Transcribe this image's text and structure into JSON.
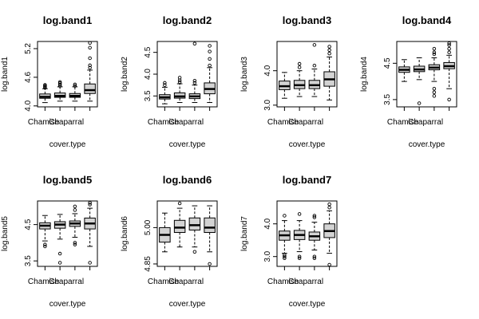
{
  "colors": {
    "box_fill": "#d3d3d3",
    "stroke": "#000000",
    "background": "#ffffff"
  },
  "chart_data": [
    {
      "type": "boxplot",
      "title": "log.band1",
      "xlabel": "cover.type",
      "ylabel": "log.band1",
      "categories": [
        "Chamise",
        "Chaparral",
        "",
        ""
      ],
      "ylim": [
        3.98,
        5.35
      ],
      "yticks": [
        4.0,
        4.6,
        5.2
      ],
      "tick_labels": [
        "4.0",
        "4.6",
        "5.2"
      ],
      "boxes": [
        {
          "min": 4.07,
          "q1": 4.16,
          "median": 4.19,
          "q3": 4.25,
          "max": 4.36,
          "outliers": [
            4.38,
            4.4,
            4.42,
            4.44
          ]
        },
        {
          "min": 4.1,
          "q1": 4.18,
          "median": 4.21,
          "q3": 4.27,
          "max": 4.4,
          "outliers": [
            4.42,
            4.45,
            4.48,
            4.5
          ]
        },
        {
          "min": 4.1,
          "q1": 4.18,
          "median": 4.21,
          "q3": 4.26,
          "max": 4.4,
          "outliers": [
            4.42,
            4.45
          ]
        },
        {
          "min": 4.1,
          "q1": 4.26,
          "median": 4.33,
          "q3": 4.46,
          "max": 4.75,
          "outliers": [
            4.8,
            4.85,
            5.0,
            5.22,
            5.32
          ]
        }
      ]
    },
    {
      "type": "boxplot",
      "title": "log.band2",
      "xlabel": "cover.type",
      "ylabel": "log.band2",
      "categories": [
        "Chamise",
        "Chaparral",
        "",
        ""
      ],
      "ylim": [
        3.25,
        4.75
      ],
      "yticks": [
        3.5,
        4.0,
        4.5
      ],
      "tick_labels": [
        "3.5",
        "4.0",
        "4.5"
      ],
      "boxes": [
        {
          "min": 3.32,
          "q1": 3.43,
          "median": 3.47,
          "q3": 3.53,
          "max": 3.7,
          "outliers": [
            3.75,
            3.8
          ]
        },
        {
          "min": 3.35,
          "q1": 3.45,
          "median": 3.49,
          "q3": 3.57,
          "max": 3.78,
          "outliers": [
            3.82,
            3.86,
            3.92
          ]
        },
        {
          "min": 3.35,
          "q1": 3.44,
          "median": 3.49,
          "q3": 3.55,
          "max": 3.75,
          "outliers": [
            3.8,
            3.85,
            4.7
          ]
        },
        {
          "min": 3.35,
          "q1": 3.55,
          "median": 3.66,
          "q3": 3.8,
          "max": 4.15,
          "outliers": [
            4.2,
            4.35,
            4.52,
            4.65
          ]
        }
      ]
    },
    {
      "type": "boxplot",
      "title": "log.band3",
      "xlabel": "cover.type",
      "ylabel": "log.band3",
      "categories": [
        "Chamise",
        "Chaparral",
        "",
        ""
      ],
      "ylim": [
        2.95,
        4.85
      ],
      "yticks": [
        3.0,
        4.0
      ],
      "tick_labels": [
        "3.0",
        "4.0"
      ],
      "boxes": [
        {
          "min": 3.2,
          "q1": 3.45,
          "median": 3.55,
          "q3": 3.7,
          "max": 3.95,
          "outliers": []
        },
        {
          "min": 3.25,
          "q1": 3.48,
          "median": 3.58,
          "q3": 3.72,
          "max": 4.0,
          "outliers": [
            4.1,
            4.2
          ]
        },
        {
          "min": 3.25,
          "q1": 3.48,
          "median": 3.58,
          "q3": 3.72,
          "max": 4.05,
          "outliers": [
            4.15,
            4.75
          ]
        },
        {
          "min": 3.15,
          "q1": 3.55,
          "median": 3.75,
          "q3": 3.97,
          "max": 4.4,
          "outliers": [
            4.5,
            4.6,
            4.7
          ]
        }
      ]
    },
    {
      "type": "boxplot",
      "title": "log.band4",
      "xlabel": "cover.type",
      "ylabel": "log.band4",
      "categories": [
        "Chamise",
        "Chaparral",
        "",
        ""
      ],
      "ylim": [
        3.3,
        5.1
      ],
      "yticks": [
        3.5,
        4.5
      ],
      "tick_labels": [
        "3.5",
        "4.5"
      ],
      "boxes": [
        {
          "min": 4.0,
          "q1": 4.25,
          "median": 4.32,
          "q3": 4.4,
          "max": 4.6,
          "outliers": []
        },
        {
          "min": 4.05,
          "q1": 4.27,
          "median": 4.33,
          "q3": 4.42,
          "max": 4.65,
          "outliers": [
            3.4
          ]
        },
        {
          "min": 4.0,
          "q1": 4.32,
          "median": 4.38,
          "q3": 4.46,
          "max": 4.65,
          "outliers": [
            3.6,
            3.7,
            3.8,
            4.75,
            4.8,
            4.9
          ]
        },
        {
          "min": 3.8,
          "q1": 4.35,
          "median": 4.42,
          "q3": 4.52,
          "max": 4.72,
          "outliers": [
            3.5,
            4.8,
            4.9,
            5.0,
            5.05
          ]
        }
      ]
    },
    {
      "type": "boxplot",
      "title": "log.band5",
      "xlabel": "cover.type",
      "ylabel": "log.band5",
      "categories": [
        "Chamise",
        "Chaparral",
        "",
        ""
      ],
      "ylim": [
        3.35,
        5.15
      ],
      "yticks": [
        3.5,
        4.5
      ],
      "tick_labels": [
        "3.5",
        "4.5"
      ],
      "boxes": [
        {
          "min": 4.05,
          "q1": 4.38,
          "median": 4.47,
          "q3": 4.55,
          "max": 4.75,
          "outliers": [
            3.9,
            3.95
          ]
        },
        {
          "min": 4.1,
          "q1": 4.4,
          "median": 4.5,
          "q3": 4.58,
          "max": 4.78,
          "outliers": [
            3.45,
            3.7
          ]
        },
        {
          "min": 4.15,
          "q1": 4.45,
          "median": 4.53,
          "q3": 4.6,
          "max": 4.8,
          "outliers": [
            3.95,
            4.0,
            4.9,
            5.0
          ]
        },
        {
          "min": 3.9,
          "q1": 4.38,
          "median": 4.53,
          "q3": 4.68,
          "max": 4.95,
          "outliers": [
            3.45,
            5.05,
            5.1
          ]
        }
      ]
    },
    {
      "type": "boxplot",
      "title": "log.band6",
      "xlabel": "cover.type",
      "ylabel": "log.band6",
      "categories": [
        "Chamise",
        "Chaparral",
        "",
        ""
      ],
      "ylim": [
        4.84,
        5.11
      ],
      "yticks": [
        4.85,
        5.0
      ],
      "tick_labels": [
        "4.85",
        "5.00"
      ],
      "boxes": [
        {
          "min": 4.9,
          "q1": 4.94,
          "median": 4.97,
          "q3": 5.0,
          "max": 5.06,
          "outliers": []
        },
        {
          "min": 4.92,
          "q1": 4.98,
          "median": 5.0,
          "q3": 5.03,
          "max": 5.08,
          "outliers": [
            5.1
          ]
        },
        {
          "min": 4.92,
          "q1": 4.99,
          "median": 5.01,
          "q3": 5.04,
          "max": 5.09,
          "outliers": [
            4.9
          ]
        },
        {
          "min": 4.9,
          "q1": 4.98,
          "median": 5.0,
          "q3": 5.04,
          "max": 5.09,
          "outliers": [
            4.85
          ]
        }
      ]
    },
    {
      "type": "boxplot",
      "title": "log.band7",
      "xlabel": "cover.type",
      "ylabel": "log.band7",
      "categories": [
        "Chamise",
        "Chaparral",
        "",
        ""
      ],
      "ylim": [
        2.7,
        4.7
      ],
      "yticks": [
        3.0,
        4.0
      ],
      "tick_labels": [
        "3.0",
        "4.0"
      ],
      "boxes": [
        {
          "min": 3.1,
          "q1": 3.5,
          "median": 3.65,
          "q3": 3.78,
          "max": 4.1,
          "outliers": [
            2.95,
            3.0,
            3.05,
            4.25
          ]
        },
        {
          "min": 3.15,
          "q1": 3.52,
          "median": 3.66,
          "q3": 3.8,
          "max": 4.1,
          "outliers": [
            2.95,
            3.0,
            4.3
          ]
        },
        {
          "min": 3.2,
          "q1": 3.5,
          "median": 3.62,
          "q3": 3.75,
          "max": 4.05,
          "outliers": [
            2.95,
            3.0,
            4.2,
            4.25
          ]
        },
        {
          "min": 3.1,
          "q1": 3.58,
          "median": 3.78,
          "q3": 4.0,
          "max": 4.4,
          "outliers": [
            2.75,
            4.5,
            4.6
          ]
        }
      ]
    }
  ]
}
